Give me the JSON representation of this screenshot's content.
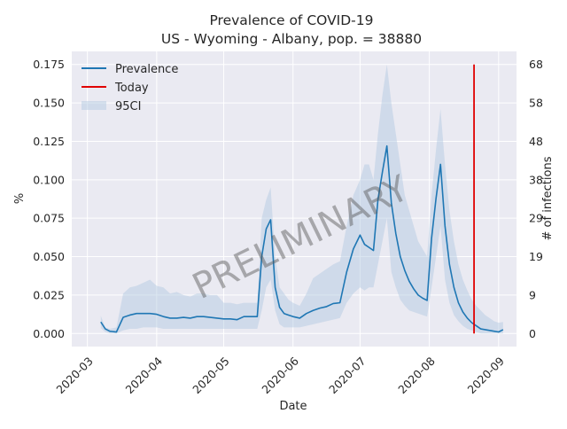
{
  "chart_data": {
    "type": "line",
    "title": "Prevalence of COVID-19",
    "subtitle": "US - Wyoming - Albany, pop. = 38880",
    "xlabel": "Date",
    "ylabel": "%",
    "ylabel_right": "# of infections",
    "ylim": [
      -0.0085,
      0.1835
    ],
    "x_ticks": [
      "2020-03-01",
      "2020-04-01",
      "2020-05-01",
      "2020-06-01",
      "2020-07-01",
      "2020-08-01",
      "2020-09-01"
    ],
    "x_tick_labels": [
      "2020-03",
      "2020-04",
      "2020-05",
      "2020-06",
      "2020-07",
      "2020-08",
      "2020-09"
    ],
    "x_range": [
      "2020-02-23",
      "2020-09-09"
    ],
    "y_ticks": [
      0.0,
      0.025,
      0.05,
      0.075,
      0.1,
      0.125,
      0.15,
      0.175
    ],
    "y_tick_labels": [
      "0.000",
      "0.025",
      "0.050",
      "0.075",
      "0.100",
      "0.125",
      "0.150",
      "0.175"
    ],
    "right_ticks": [
      0,
      9,
      19,
      29,
      38,
      48,
      58,
      68
    ],
    "grid": true,
    "legend_placement": "top-left",
    "legend": [
      "Prevalence",
      "Today",
      "95CI"
    ],
    "watermark": "PRELIMINARY",
    "colors": {
      "prevalence": "#1f77b4",
      "today": "#e00000",
      "ci": "#b0c8e0",
      "plot_bg": "#eaeaf2",
      "grid": "#ffffff"
    },
    "today": "2020-08-21",
    "series": [
      {
        "name": "Prevalence",
        "x": [
          "2020-03-07",
          "2020-03-09",
          "2020-03-11",
          "2020-03-14",
          "2020-03-17",
          "2020-03-20",
          "2020-03-23",
          "2020-03-26",
          "2020-03-29",
          "2020-04-01",
          "2020-04-04",
          "2020-04-07",
          "2020-04-10",
          "2020-04-13",
          "2020-04-16",
          "2020-04-19",
          "2020-04-22",
          "2020-04-25",
          "2020-04-28",
          "2020-05-01",
          "2020-05-04",
          "2020-05-07",
          "2020-05-10",
          "2020-05-13",
          "2020-05-16",
          "2020-05-18",
          "2020-05-20",
          "2020-05-22",
          "2020-05-24",
          "2020-05-26",
          "2020-05-28",
          "2020-05-30",
          "2020-06-01",
          "2020-06-04",
          "2020-06-07",
          "2020-06-10",
          "2020-06-13",
          "2020-06-16",
          "2020-06-19",
          "2020-06-22",
          "2020-06-25",
          "2020-06-28",
          "2020-07-01",
          "2020-07-03",
          "2020-07-05",
          "2020-07-07",
          "2020-07-09",
          "2020-07-11",
          "2020-07-13",
          "2020-07-15",
          "2020-07-17",
          "2020-07-19",
          "2020-07-21",
          "2020-07-23",
          "2020-07-25",
          "2020-07-27",
          "2020-07-29",
          "2020-07-31",
          "2020-08-02",
          "2020-08-04",
          "2020-08-06",
          "2020-08-08",
          "2020-08-10",
          "2020-08-12",
          "2020-08-14",
          "2020-08-16",
          "2020-08-18",
          "2020-08-20",
          "2020-08-22",
          "2020-08-24",
          "2020-08-26",
          "2020-08-28",
          "2020-08-30",
          "2020-09-01",
          "2020-09-03"
        ],
        "values": [
          0.0075,
          0.003,
          0.0015,
          0.001,
          0.0105,
          0.012,
          0.013,
          0.013,
          0.013,
          0.0125,
          0.011,
          0.01,
          0.01,
          0.0105,
          0.01,
          0.011,
          0.011,
          0.0105,
          0.01,
          0.0095,
          0.0095,
          0.009,
          0.011,
          0.011,
          0.011,
          0.05,
          0.068,
          0.074,
          0.03,
          0.017,
          0.013,
          0.012,
          0.011,
          0.01,
          0.013,
          0.015,
          0.0165,
          0.0175,
          0.0195,
          0.02,
          0.04,
          0.055,
          0.064,
          0.058,
          0.056,
          0.054,
          0.087,
          0.105,
          0.122,
          0.085,
          0.065,
          0.05,
          0.041,
          0.034,
          0.029,
          0.025,
          0.023,
          0.0215,
          0.062,
          0.088,
          0.11,
          0.07,
          0.045,
          0.03,
          0.02,
          0.014,
          0.01,
          0.007,
          0.005,
          0.003,
          0.0025,
          0.002,
          0.0015,
          0.001,
          0.0025
        ]
      }
    ],
    "ci_upper": [
      0.0115,
      0.004,
      0.003,
      0.004,
      0.026,
      0.03,
      0.031,
      0.033,
      0.035,
      0.031,
      0.03,
      0.026,
      0.027,
      0.025,
      0.024,
      0.026,
      0.026,
      0.025,
      0.025,
      0.02,
      0.02,
      0.019,
      0.02,
      0.02,
      0.02,
      0.075,
      0.087,
      0.095,
      0.05,
      0.03,
      0.026,
      0.022,
      0.02,
      0.018,
      0.026,
      0.036,
      0.039,
      0.042,
      0.045,
      0.047,
      0.07,
      0.09,
      0.1,
      0.11,
      0.11,
      0.1,
      0.13,
      0.155,
      0.175,
      0.15,
      0.13,
      0.11,
      0.09,
      0.08,
      0.07,
      0.06,
      0.055,
      0.05,
      0.09,
      0.12,
      0.146,
      0.11,
      0.08,
      0.06,
      0.045,
      0.035,
      0.028,
      0.022,
      0.018,
      0.015,
      0.012,
      0.01,
      0.008,
      0.007,
      0.0075
    ],
    "ci_lower": [
      0.0035,
      0.001,
      0.0,
      0.0,
      0.002,
      0.003,
      0.003,
      0.004,
      0.004,
      0.004,
      0.003,
      0.003,
      0.003,
      0.003,
      0.003,
      0.003,
      0.003,
      0.003,
      0.003,
      0.003,
      0.003,
      0.003,
      0.003,
      0.003,
      0.003,
      0.015,
      0.03,
      0.035,
      0.015,
      0.006,
      0.004,
      0.004,
      0.004,
      0.004,
      0.005,
      0.006,
      0.007,
      0.008,
      0.009,
      0.01,
      0.02,
      0.026,
      0.03,
      0.028,
      0.03,
      0.03,
      0.045,
      0.06,
      0.075,
      0.04,
      0.03,
      0.022,
      0.018,
      0.015,
      0.014,
      0.013,
      0.012,
      0.011,
      0.03,
      0.05,
      0.07,
      0.035,
      0.02,
      0.012,
      0.008,
      0.005,
      0.003,
      0.002,
      0.001,
      0.0,
      0.0,
      0.0,
      0.0,
      0.0,
      0.0
    ]
  }
}
